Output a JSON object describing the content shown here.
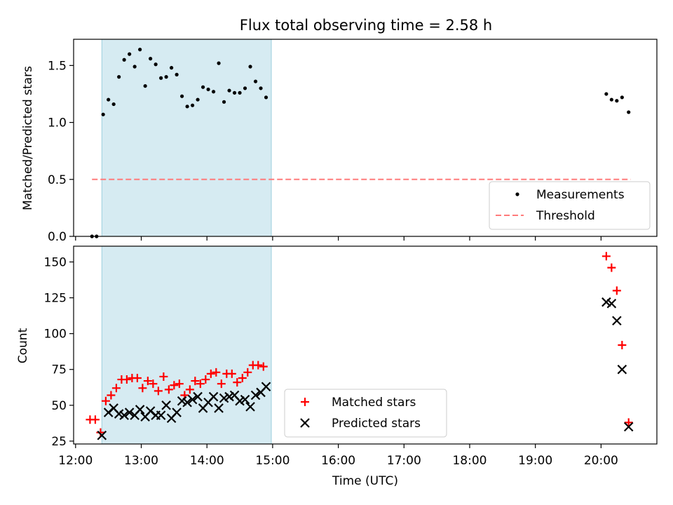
{
  "title": "Flux total observing time = 2.58 h",
  "chart_data": [
    {
      "type": "scatter",
      "panel": "top",
      "ylabel": "Matched/Predicted stars",
      "ylim": [
        0,
        1.73
      ],
      "yticks": [
        0.0,
        0.5,
        1.0,
        1.5
      ],
      "ytick_labels": [
        "0.0",
        "0.5",
        "1.0",
        "1.5"
      ],
      "xlim_hours": [
        11.97,
        20.85
      ],
      "shaded_interval_hours": [
        12.4,
        14.98
      ],
      "legend": {
        "placement": "lower-right",
        "entries": [
          "Measurements",
          "Threshold"
        ]
      },
      "threshold": {
        "name": "Threshold",
        "value": 0.5,
        "x_range_hours": [
          12.25,
          20.45
        ],
        "color": "#ff7b7b"
      },
      "series": [
        {
          "name": "Measurements",
          "color": "#000000",
          "points": [
            [
              12.25,
              0.0
            ],
            [
              12.32,
              0.0
            ],
            [
              12.42,
              1.07
            ],
            [
              12.5,
              1.2
            ],
            [
              12.58,
              1.16
            ],
            [
              12.66,
              1.4
            ],
            [
              12.74,
              1.55
            ],
            [
              12.82,
              1.6
            ],
            [
              12.9,
              1.49
            ],
            [
              12.98,
              1.64
            ],
            [
              13.06,
              1.32
            ],
            [
              13.14,
              1.56
            ],
            [
              13.22,
              1.51
            ],
            [
              13.3,
              1.39
            ],
            [
              13.38,
              1.4
            ],
            [
              13.46,
              1.48
            ],
            [
              13.54,
              1.42
            ],
            [
              13.62,
              1.23
            ],
            [
              13.7,
              1.14
            ],
            [
              13.78,
              1.15
            ],
            [
              13.86,
              1.2
            ],
            [
              13.94,
              1.31
            ],
            [
              14.02,
              1.29
            ],
            [
              14.1,
              1.27
            ],
            [
              14.18,
              1.52
            ],
            [
              14.26,
              1.18
            ],
            [
              14.34,
              1.28
            ],
            [
              14.42,
              1.26
            ],
            [
              14.5,
              1.26
            ],
            [
              14.58,
              1.3
            ],
            [
              14.66,
              1.49
            ],
            [
              14.74,
              1.36
            ],
            [
              14.82,
              1.3
            ],
            [
              14.9,
              1.22
            ],
            [
              20.08,
              1.25
            ],
            [
              20.16,
              1.2
            ],
            [
              20.24,
              1.19
            ],
            [
              20.32,
              1.22
            ],
            [
              20.42,
              1.09
            ]
          ]
        }
      ]
    },
    {
      "type": "scatter",
      "panel": "bottom",
      "xlabel": "Time (UTC)",
      "ylabel": "Count",
      "ylim": [
        23,
        161
      ],
      "yticks": [
        25,
        50,
        75,
        100,
        125,
        150
      ],
      "ytick_labels": [
        "25",
        "50",
        "75",
        "100",
        "125",
        "150"
      ],
      "xlim_hours": [
        11.97,
        20.85
      ],
      "xticks_hours": [
        12,
        13,
        14,
        15,
        16,
        17,
        18,
        19,
        20
      ],
      "xtick_labels": [
        "12:00",
        "13:00",
        "14:00",
        "15:00",
        "16:00",
        "17:00",
        "18:00",
        "19:00",
        "20:00"
      ],
      "shaded_interval_hours": [
        12.4,
        14.98
      ],
      "legend": {
        "placement": "lower-center",
        "entries": [
          "Matched stars",
          "Predicted stars"
        ]
      },
      "series": [
        {
          "name": "Matched stars",
          "marker": "plus",
          "color": "#ff0000",
          "points": [
            [
              12.22,
              40
            ],
            [
              12.3,
              40
            ],
            [
              12.38,
              31
            ],
            [
              12.46,
              53
            ],
            [
              12.54,
              57
            ],
            [
              12.62,
              62
            ],
            [
              12.7,
              68
            ],
            [
              12.78,
              68
            ],
            [
              12.86,
              69
            ],
            [
              12.94,
              69
            ],
            [
              13.02,
              62
            ],
            [
              13.1,
              67
            ],
            [
              13.18,
              65
            ],
            [
              13.26,
              60
            ],
            [
              13.34,
              70
            ],
            [
              13.42,
              61
            ],
            [
              13.5,
              64
            ],
            [
              13.58,
              65
            ],
            [
              13.66,
              57
            ],
            [
              13.74,
              61
            ],
            [
              13.82,
              67
            ],
            [
              13.9,
              65
            ],
            [
              13.98,
              68
            ],
            [
              14.06,
              72
            ],
            [
              14.14,
              73
            ],
            [
              14.22,
              65
            ],
            [
              14.3,
              72
            ],
            [
              14.38,
              72
            ],
            [
              14.46,
              66
            ],
            [
              14.54,
              69
            ],
            [
              14.62,
              73
            ],
            [
              14.7,
              78
            ],
            [
              14.78,
              78
            ],
            [
              14.86,
              77
            ],
            [
              20.08,
              154
            ],
            [
              20.16,
              146
            ],
            [
              20.24,
              130
            ],
            [
              20.32,
              92
            ],
            [
              20.42,
              38
            ]
          ]
        },
        {
          "name": "Predicted stars",
          "marker": "x",
          "color": "#000000",
          "points": [
            [
              12.4,
              29
            ],
            [
              12.5,
              45
            ],
            [
              12.58,
              48
            ],
            [
              12.66,
              44
            ],
            [
              12.74,
              43
            ],
            [
              12.82,
              45
            ],
            [
              12.9,
              43
            ],
            [
              12.98,
              47
            ],
            [
              13.06,
              42
            ],
            [
              13.14,
              46
            ],
            [
              13.22,
              43
            ],
            [
              13.3,
              43
            ],
            [
              13.38,
              50
            ],
            [
              13.46,
              41
            ],
            [
              13.54,
              45
            ],
            [
              13.62,
              53
            ],
            [
              13.7,
              52
            ],
            [
              13.78,
              54
            ],
            [
              13.86,
              56
            ],
            [
              13.94,
              48
            ],
            [
              14.02,
              52
            ],
            [
              14.1,
              56
            ],
            [
              14.18,
              48
            ],
            [
              14.26,
              55
            ],
            [
              14.34,
              56
            ],
            [
              14.42,
              57
            ],
            [
              14.5,
              53
            ],
            [
              14.58,
              54
            ],
            [
              14.66,
              49
            ],
            [
              14.74,
              57
            ],
            [
              14.82,
              59
            ],
            [
              14.9,
              63
            ],
            [
              20.08,
              122
            ],
            [
              20.16,
              121
            ],
            [
              20.24,
              109
            ],
            [
              20.32,
              75
            ],
            [
              20.42,
              35
            ]
          ]
        }
      ]
    }
  ]
}
